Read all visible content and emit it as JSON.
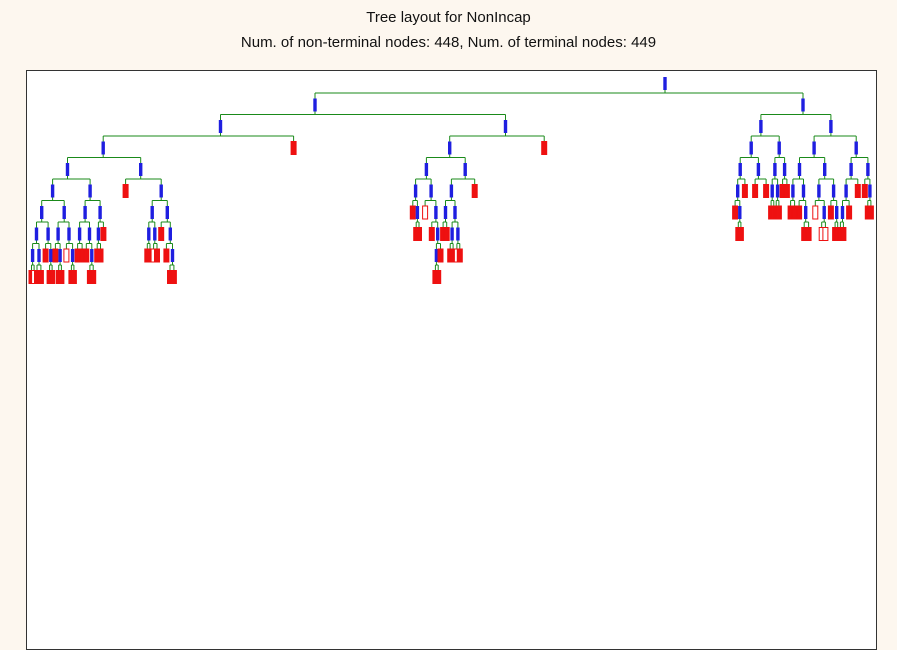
{
  "header": {
    "title": "Tree layout for NonIncap",
    "subtitle": "Num. of non-terminal nodes: 448,  Num. of terminal nodes: 449"
  },
  "colors": {
    "edge": "#1a8a1a",
    "split_node": "#1f1fe0",
    "terminal_node": "#ee1111",
    "frame_bg": "#ffffff",
    "page_bg": "#fdf7ef"
  }
}
